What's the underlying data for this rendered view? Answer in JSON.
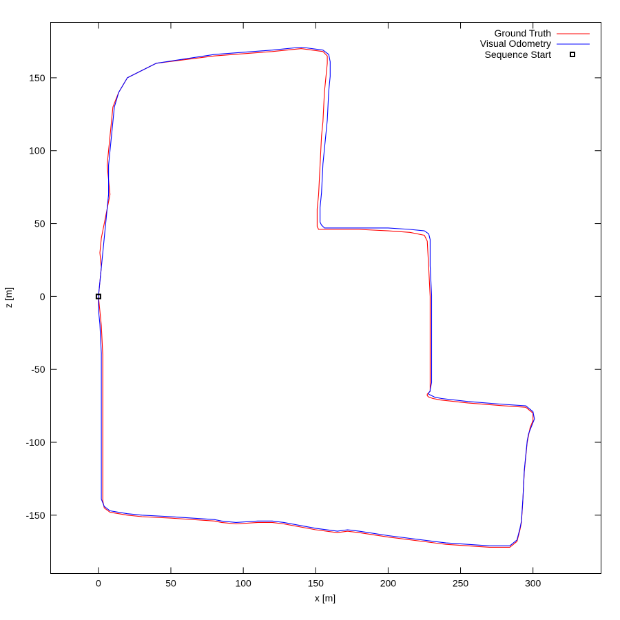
{
  "chart_data": {
    "type": "line",
    "title": "",
    "xlabel": "x [m]",
    "ylabel": "z [m]",
    "xlim": [
      -33,
      347
    ],
    "ylim": [
      -190,
      188
    ],
    "grid": false,
    "legend_position": "top-right",
    "xticks": [
      "0",
      "50",
      "100",
      "150",
      "200",
      "250",
      "300"
    ],
    "yticks": [
      "-150",
      "-100",
      "-50",
      "0",
      "50",
      "100",
      "150"
    ],
    "series": [
      {
        "name": "Ground Truth",
        "color": "#ff0000",
        "x": [
          0,
          1,
          2,
          1,
          2,
          4,
          6,
          8,
          7,
          6,
          7,
          8,
          9,
          10,
          14,
          20,
          40,
          80,
          120,
          140,
          155,
          158,
          158,
          157,
          156,
          155,
          154,
          153,
          152,
          151,
          151,
          151,
          152,
          155,
          160,
          180,
          200,
          215,
          225,
          227,
          228,
          229,
          229,
          229,
          229,
          229,
          229,
          228,
          227,
          227,
          228,
          231,
          236,
          255,
          280,
          295,
          300,
          300,
          298,
          297,
          296,
          295,
          294,
          293,
          292,
          291,
          289,
          284,
          270,
          240,
          200,
          180,
          172,
          165,
          150,
          128,
          120,
          110,
          95,
          85,
          80,
          50,
          30,
          20,
          8,
          4,
          3,
          3,
          3,
          3,
          3,
          3,
          2,
          1,
          0
        ],
        "y": [
          0,
          10,
          20,
          30,
          40,
          50,
          60,
          70,
          80,
          90,
          100,
          110,
          120,
          130,
          140,
          150,
          160,
          165,
          168,
          170,
          168,
          165,
          160,
          150,
          140,
          120,
          110,
          90,
          70,
          60,
          50,
          48,
          46,
          46,
          46,
          46,
          45,
          44,
          42,
          38,
          20,
          0,
          -20,
          -40,
          -50,
          -60,
          -65,
          -66,
          -67,
          -68,
          -69,
          -70,
          -71,
          -73,
          -75,
          -76,
          -80,
          -85,
          -90,
          -95,
          -100,
          -110,
          -120,
          -140,
          -155,
          -160,
          -168,
          -172,
          -172,
          -170,
          -165,
          -162,
          -161,
          -162,
          -160,
          -156,
          -155,
          -155,
          -156,
          -155,
          -154,
          -152,
          -151,
          -150,
          -148,
          -145,
          -140,
          -130,
          -100,
          -80,
          -60,
          -40,
          -20,
          -10,
          0
        ]
      },
      {
        "name": "Visual Odometry",
        "color": "#0000ff",
        "x": [
          0,
          1,
          2,
          3,
          4,
          5,
          6,
          7,
          7,
          7,
          8,
          9,
          10,
          11,
          14,
          20,
          40,
          80,
          120,
          140,
          155,
          159,
          160,
          160,
          159,
          158,
          157,
          155,
          154,
          153,
          153,
          154,
          156,
          160,
          180,
          200,
          215,
          225,
          228,
          229,
          229,
          230,
          230,
          230,
          230,
          230,
          229,
          229,
          228,
          228,
          230,
          232,
          237,
          255,
          280,
          295,
          300,
          301,
          299,
          297,
          296,
          295,
          294,
          293,
          292,
          291,
          289,
          284,
          270,
          240,
          200,
          180,
          172,
          165,
          150,
          128,
          120,
          110,
          95,
          85,
          80,
          50,
          30,
          20,
          8,
          4,
          2,
          2,
          2,
          2,
          2,
          2,
          1,
          0,
          0
        ],
        "y": [
          0,
          10,
          20,
          30,
          40,
          50,
          60,
          70,
          80,
          90,
          100,
          110,
          120,
          130,
          140,
          150,
          160,
          166,
          169,
          171,
          169,
          166,
          161,
          151,
          141,
          121,
          111,
          91,
          71,
          61,
          51,
          49,
          47,
          47,
          47,
          47,
          46,
          45,
          43,
          39,
          21,
          1,
          -19,
          -39,
          -49,
          -59,
          -64,
          -65,
          -66,
          -67,
          -68,
          -69,
          -70,
          -72,
          -74,
          -75,
          -79,
          -84,
          -89,
          -94,
          -99,
          -109,
          -119,
          -139,
          -154,
          -159,
          -167,
          -171,
          -171,
          -169,
          -164,
          -161,
          -160,
          -161,
          -159,
          -155,
          -154,
          -154,
          -155,
          -154,
          -153,
          -151,
          -150,
          -149,
          -147,
          -144,
          -139,
          -129,
          -99,
          -79,
          -59,
          -39,
          -19,
          -9,
          0
        ]
      }
    ],
    "markers": [
      {
        "name": "Sequence Start",
        "x": 0,
        "y": 0,
        "shape": "square",
        "color": "#000000"
      }
    ]
  }
}
